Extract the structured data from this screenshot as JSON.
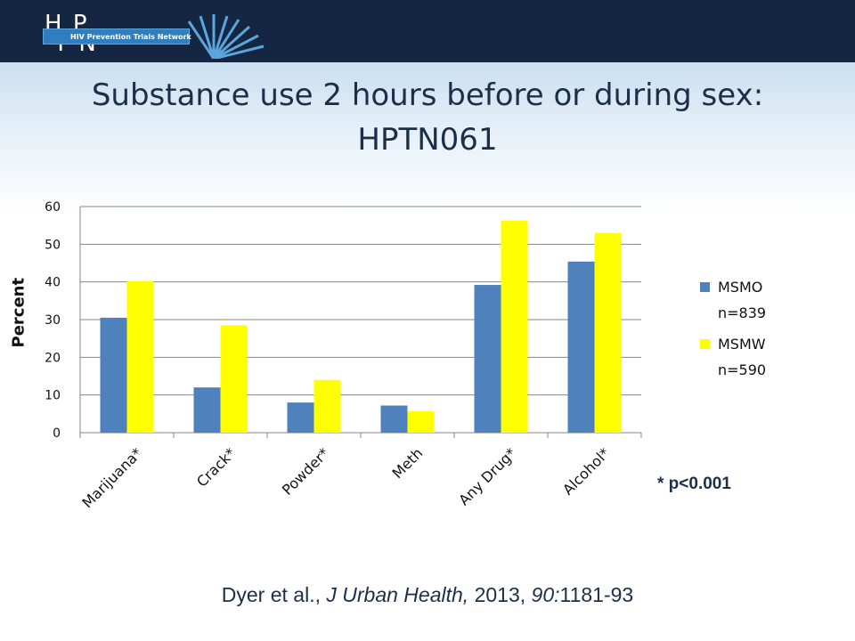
{
  "header": {
    "logo_mark": "H P\n T N",
    "logo_name": "HIV Prevention Trials Network",
    "accent": "#142642"
  },
  "title_line1": "Substance use 2 hours before or during sex:",
  "title_line2": "HPTN061",
  "footnote": "* p<0.001",
  "citation": {
    "authors": "Dyer et al., ",
    "journal": "J Urban Health,",
    "year": " 2013, ",
    "volume": "90:",
    "pages": "1181-93"
  },
  "chart_data": {
    "type": "bar",
    "categories": [
      "Marijuana*",
      "Crack*",
      "Powder*",
      "Meth",
      "Any Drug*",
      "Alcohol*"
    ],
    "series": [
      {
        "name": "MSMO n=839",
        "legend_lines": [
          "MSMO",
          "n=839"
        ],
        "color": "#4f81bd",
        "values": [
          30.5,
          12,
          8,
          7.2,
          39.2,
          45.4
        ]
      },
      {
        "name": "MSMW n=590",
        "legend_lines": [
          "MSMW",
          "n=590"
        ],
        "color": "#ffff00",
        "values": [
          40.2,
          28.5,
          14,
          5.7,
          56.3,
          53
        ]
      }
    ],
    "ylabel": "Percent",
    "ylim": [
      0,
      60
    ],
    "yticks": [
      0,
      10,
      20,
      30,
      40,
      50,
      60
    ],
    "grid": true,
    "legend_position": "right"
  }
}
